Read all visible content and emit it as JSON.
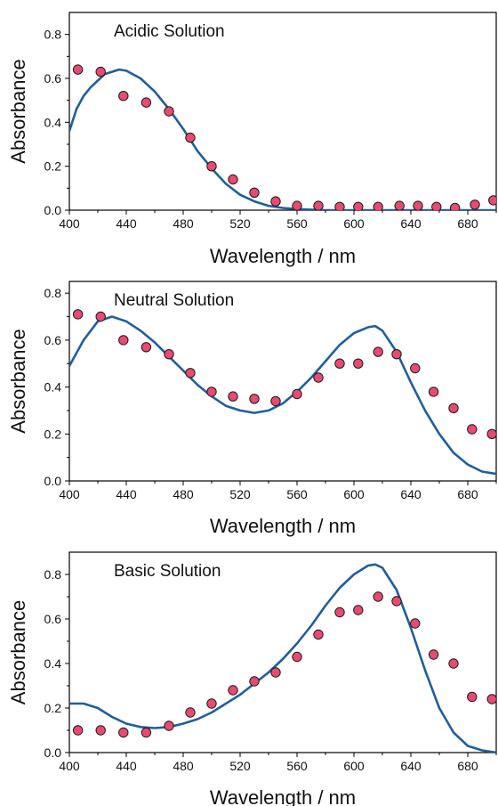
{
  "colors": {
    "curve": "#1f5f9b",
    "marker_fill": "#e84a72",
    "marker_stroke": "#1a1a1a",
    "axis": "#000000"
  },
  "chart_data": [
    {
      "type": "line",
      "title": "Acidic Solution",
      "xlabel": "Wavelength /  nm",
      "ylabel": "Absorbance",
      "xlim": [
        400,
        700
      ],
      "ylim": [
        0,
        0.9
      ],
      "xticks": [
        400,
        440,
        480,
        520,
        560,
        600,
        640,
        680
      ],
      "yticks": [
        0.0,
        0.2,
        0.4,
        0.6,
        0.8
      ],
      "ytick_labels": [
        "0.0",
        "0.2",
        "0.4",
        "0.6",
        "0.8"
      ],
      "series": [
        {
          "style": "line",
          "x": [
            400,
            405,
            410,
            415,
            420,
            425,
            430,
            435,
            440,
            450,
            460,
            470,
            480,
            490,
            500,
            510,
            520,
            530,
            540,
            550,
            560,
            580,
            600,
            640,
            700
          ],
          "y": [
            0.36,
            0.46,
            0.52,
            0.56,
            0.59,
            0.62,
            0.63,
            0.64,
            0.635,
            0.6,
            0.54,
            0.46,
            0.37,
            0.27,
            0.19,
            0.12,
            0.07,
            0.04,
            0.02,
            0.01,
            0.005,
            0.0,
            0.0,
            0.0,
            0.0
          ]
        },
        {
          "style": "scatter",
          "x": [
            406,
            422,
            438,
            454,
            470,
            485,
            500,
            515,
            530,
            545,
            560,
            575,
            590,
            603,
            617,
            632,
            645,
            658,
            671,
            685,
            698
          ],
          "y": [
            0.64,
            0.63,
            0.52,
            0.49,
            0.45,
            0.33,
            0.2,
            0.14,
            0.08,
            0.04,
            0.02,
            0.02,
            0.015,
            0.015,
            0.015,
            0.02,
            0.02,
            0.015,
            0.01,
            0.025,
            0.045
          ]
        }
      ]
    },
    {
      "type": "line",
      "title": "Neutral Solution",
      "xlabel": "Wavelength /  nm",
      "ylabel": "Absorbance",
      "xlim": [
        400,
        700
      ],
      "ylim": [
        0,
        0.85
      ],
      "xticks": [
        400,
        440,
        480,
        520,
        560,
        600,
        640,
        680
      ],
      "yticks": [
        0.0,
        0.2,
        0.4,
        0.6,
        0.8
      ],
      "ytick_labels": [
        "0.0",
        "0.2",
        "0.4",
        "0.6",
        "0.8"
      ],
      "series": [
        {
          "style": "line",
          "x": [
            400,
            410,
            420,
            430,
            440,
            450,
            460,
            470,
            480,
            490,
            500,
            510,
            520,
            530,
            540,
            550,
            560,
            570,
            580,
            590,
            600,
            610,
            615,
            620,
            630,
            640,
            650,
            660,
            670,
            680,
            690,
            700
          ],
          "y": [
            0.49,
            0.6,
            0.68,
            0.7,
            0.68,
            0.64,
            0.59,
            0.53,
            0.47,
            0.41,
            0.36,
            0.32,
            0.3,
            0.29,
            0.3,
            0.33,
            0.38,
            0.44,
            0.51,
            0.58,
            0.63,
            0.655,
            0.66,
            0.64,
            0.55,
            0.42,
            0.3,
            0.2,
            0.12,
            0.07,
            0.04,
            0.03
          ]
        },
        {
          "style": "scatter",
          "x": [
            406,
            422,
            438,
            454,
            470,
            485,
            500,
            515,
            530,
            545,
            560,
            575,
            590,
            603,
            617,
            630,
            643,
            656,
            670,
            683,
            697
          ],
          "y": [
            0.71,
            0.7,
            0.6,
            0.57,
            0.54,
            0.46,
            0.38,
            0.36,
            0.35,
            0.34,
            0.37,
            0.44,
            0.5,
            0.5,
            0.55,
            0.54,
            0.48,
            0.38,
            0.31,
            0.22,
            0.2
          ]
        }
      ]
    },
    {
      "type": "line",
      "title": "Basic Solution",
      "xlabel": "Wavelength /  nm",
      "ylabel": "Absorbance",
      "xlim": [
        400,
        700
      ],
      "ylim": [
        0,
        0.9
      ],
      "xticks": [
        400,
        440,
        480,
        520,
        560,
        600,
        640,
        680
      ],
      "yticks": [
        0.0,
        0.2,
        0.4,
        0.6,
        0.8
      ],
      "ytick_labels": [
        "0.0",
        "0.2",
        "0.4",
        "0.6",
        "0.8"
      ],
      "series": [
        {
          "style": "line",
          "x": [
            400,
            410,
            420,
            430,
            440,
            450,
            460,
            470,
            480,
            490,
            500,
            510,
            520,
            530,
            540,
            550,
            560,
            570,
            580,
            590,
            600,
            610,
            615,
            620,
            630,
            640,
            650,
            660,
            670,
            680,
            690,
            700
          ],
          "y": [
            0.22,
            0.22,
            0.2,
            0.16,
            0.13,
            0.115,
            0.11,
            0.115,
            0.13,
            0.15,
            0.18,
            0.22,
            0.26,
            0.31,
            0.36,
            0.42,
            0.49,
            0.57,
            0.66,
            0.74,
            0.8,
            0.84,
            0.845,
            0.83,
            0.73,
            0.56,
            0.37,
            0.2,
            0.09,
            0.03,
            0.01,
            0.0
          ]
        },
        {
          "style": "scatter",
          "x": [
            406,
            422,
            438,
            454,
            470,
            485,
            500,
            515,
            530,
            545,
            560,
            575,
            590,
            603,
            617,
            630,
            643,
            656,
            670,
            683,
            697
          ],
          "y": [
            0.1,
            0.1,
            0.09,
            0.09,
            0.12,
            0.18,
            0.22,
            0.28,
            0.32,
            0.36,
            0.43,
            0.53,
            0.63,
            0.64,
            0.7,
            0.68,
            0.58,
            0.44,
            0.4,
            0.25,
            0.24
          ]
        }
      ]
    }
  ]
}
